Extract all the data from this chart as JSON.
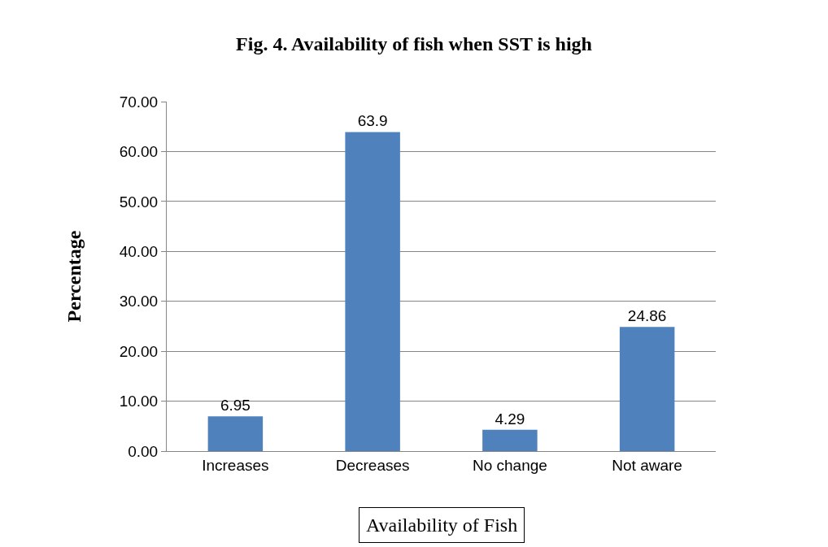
{
  "chart_data": {
    "type": "bar",
    "title": "Fig. 4. Availability of fish when SST is high",
    "xlabel": "Availability of Fish",
    "ylabel": "Percentage",
    "categories": [
      "Increases",
      "Decreases",
      "No change",
      "Not aware"
    ],
    "values": [
      6.95,
      63.9,
      4.29,
      24.86
    ],
    "value_labels": [
      "6.95",
      "63.9",
      "4.29",
      "24.86"
    ],
    "color": "#4f81bd",
    "ylim": [
      0,
      70
    ],
    "yticks": [
      {
        "value": 0,
        "label": "0.00"
      },
      {
        "value": 10,
        "label": "10.00"
      },
      {
        "value": 20,
        "label": "20.00"
      },
      {
        "value": 30,
        "label": "30.00"
      },
      {
        "value": 40,
        "label": "40.00"
      },
      {
        "value": 50,
        "label": "50.00"
      },
      {
        "value": 60,
        "label": "60.00"
      },
      {
        "value": 70,
        "label": "70.00"
      }
    ],
    "grid": "y",
    "legend": false
  }
}
